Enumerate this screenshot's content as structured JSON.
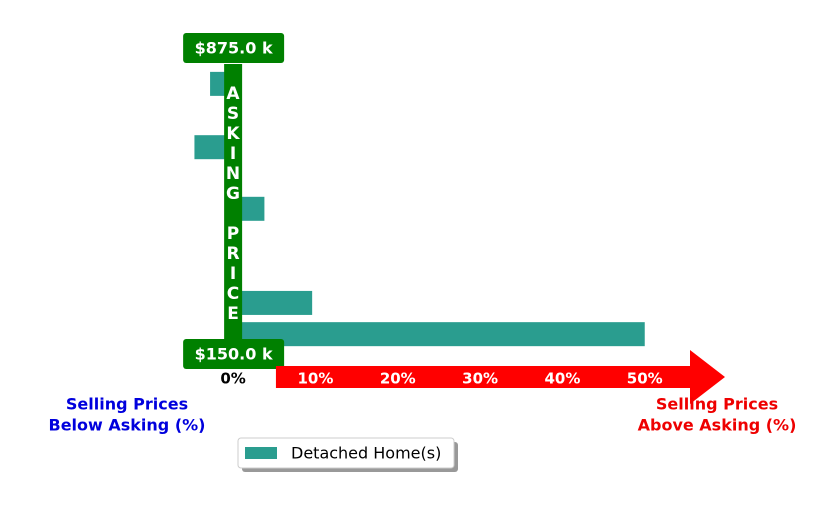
{
  "chart_data": {
    "type": "bar",
    "orientation": "horizontal",
    "axis_label": "ASKING PRICE",
    "left_label": [
      "Selling Prices",
      "Below Asking (%)"
    ],
    "right_label": [
      "Selling Prices",
      "Above Asking (%)"
    ],
    "y": [
      790,
      640,
      494,
      271,
      197
    ],
    "series": [
      {
        "name": "Detached Home(s)",
        "color": "#2a9d8f",
        "values": [
          -2.8,
          -4.7,
          3.8,
          9.6,
          50
        ]
      }
    ],
    "xlim": [
      -18.6,
      64
    ],
    "xticks": [
      {
        "value": 0,
        "label": "0%"
      },
      {
        "value": 10,
        "label": "10%"
      },
      {
        "value": 20,
        "label": "20%"
      },
      {
        "value": 30,
        "label": "30%"
      },
      {
        "value": 40,
        "label": "40%"
      },
      {
        "value": 50,
        "label": "50%"
      }
    ],
    "ylim": [
      150,
      875
    ],
    "yticks": [
      {
        "value": 150,
        "label": "$150.0 k"
      },
      {
        "value": 875,
        "label": "$875.0 k"
      }
    ],
    "axis_color": "#008000",
    "arrow_color": "#ff0000",
    "left_label_color": "#0000dd",
    "right_label_color": "#ee0000",
    "legend": "lower center"
  }
}
